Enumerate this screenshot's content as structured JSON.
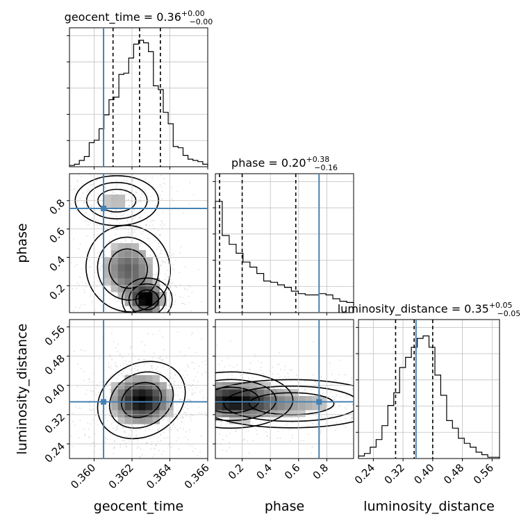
{
  "chart_data": {
    "type": "corner",
    "parameters": [
      "geocent_time",
      "phase",
      "luminosity_distance"
    ],
    "truths": [
      0.3605,
      0.745,
      0.355
    ],
    "axis_ticks": {
      "geocent_time": [
        "0.360",
        "0.362",
        "0.364",
        "0.366"
      ],
      "phase": [
        "0.2",
        "0.4",
        "0.6",
        "0.8"
      ],
      "luminosity_distance": [
        "0.24",
        "0.32",
        "0.40",
        "0.48",
        "0.56"
      ]
    },
    "ranges": {
      "geocent_time": [
        0.3587,
        0.366
      ],
      "phase": [
        0.01,
        0.99
      ],
      "luminosity_distance": [
        0.2,
        0.58
      ]
    },
    "titles": [
      {
        "param": "geocent_time",
        "prefix": "geocent_time = 0.36",
        "sup": "+0.00",
        "sub": "−0.00"
      },
      {
        "param": "phase",
        "prefix": "phase = 0.20",
        "sup": "+0.38",
        "sub": "−0.16"
      },
      {
        "param": "luminosity_distance",
        "prefix": "luminosity_distance = 0.35",
        "sup": "+0.05",
        "sub": "−0.05"
      }
    ],
    "quantiles": {
      "geocent_time": [
        0.361,
        0.3624,
        0.3635
      ],
      "phase": [
        0.04,
        0.2,
        0.58
      ],
      "luminosity_distance": [
        0.3,
        0.35,
        0.4
      ]
    },
    "histograms": {
      "geocent_time": {
        "edges": [
          0.3587,
          0.366
        ],
        "counts": [
          0.01,
          0.02,
          0.05,
          0.08,
          0.19,
          0.21,
          0.3,
          0.41,
          0.53,
          0.55,
          0.73,
          0.74,
          0.86,
          0.97,
          1.0,
          0.98,
          0.91,
          0.64,
          0.61,
          0.43,
          0.34,
          0.16,
          0.15,
          0.09,
          0.06,
          0.05,
          0.04,
          0.02
        ]
      },
      "phase": {
        "edges": [
          0.01,
          0.99
        ],
        "counts": [
          0.88,
          0.61,
          0.54,
          0.47,
          0.4,
          0.36,
          0.31,
          0.25,
          0.24,
          0.22,
          0.2,
          0.17,
          0.15,
          0.14,
          0.14,
          0.15,
          0.14,
          0.11,
          0.09,
          0.08
        ]
      },
      "luminosity_distance": {
        "edges": [
          0.2,
          0.58
        ],
        "counts": [
          0.02,
          0.04,
          0.09,
          0.15,
          0.26,
          0.42,
          0.52,
          0.72,
          0.8,
          0.88,
          0.95,
          0.97,
          0.88,
          0.66,
          0.5,
          0.3,
          0.24,
          0.16,
          0.12,
          0.09,
          0.05,
          0.03,
          0.01,
          0.01
        ]
      }
    },
    "grid": true,
    "colors": {
      "truth": "#4682b4",
      "line": "#000000",
      "grid": "#c0c0c0",
      "points": "#808080"
    }
  }
}
